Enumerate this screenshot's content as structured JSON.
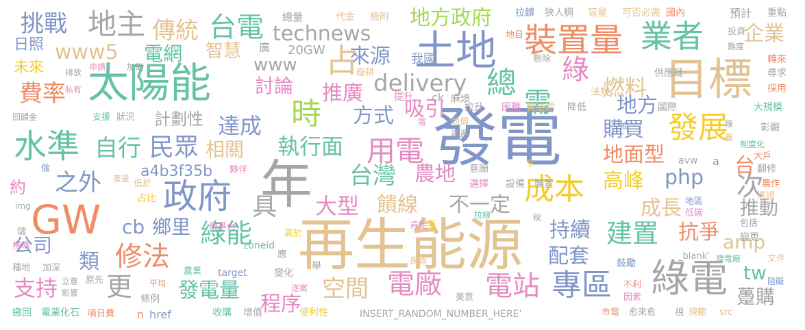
{
  "palette": [
    "#e3c392",
    "#8096c8",
    "#a6a6a6",
    "#ef8c66",
    "#e68ac2",
    "#66c2a5",
    "#a5d854",
    "#f5cc2d"
  ],
  "words": [
    "再生能源",
    "發電",
    "年",
    "太陽能",
    "目標",
    "GW",
    "土地",
    "綠電",
    "政府",
    "水準",
    "裝置量",
    "業者",
    "時",
    "專區",
    "電站",
    "電廠",
    "成本",
    "發展",
    "用電",
    "台電",
    "地主",
    "挑戰",
    "傳統",
    "technews",
    "www5",
    "地方政府",
    "來源",
    "占",
    "企業",
    "費率",
    "綠",
    "需",
    "燃料",
    "delivery",
    "總",
    "民眾",
    "自行",
    "達成",
    "之外",
    "電網",
    "智慧",
    "www",
    "討論",
    "推廣",
    "方式",
    "吸引",
    "執行面",
    "台灣",
    "購買",
    "地面型",
    "php",
    "高峰",
    "台",
    "農地",
    "大型",
    "饋線",
    "不一定",
    "成長",
    "推動",
    "次",
    "具",
    "相關",
    "計劃性",
    "a4b3f35b",
    "cb",
    "鄉里",
    "修法",
    "綠能",
    "公司",
    "類",
    "持續",
    "建置",
    "抗爭",
    "amp",
    "配套",
    "支持",
    "更",
    "發電量",
    "程序",
    "空間",
    "tw",
    "躉購",
    "地方",
    "日照",
    "未來",
    "20GW",
    "我國",
    "廣",
    "總量",
    "代金",
    "檢附",
    "拉饋",
    "狹人稠",
    "容量",
    "可否必需",
    "國內",
    "重點",
    "預計",
    "地目",
    "投資",
    "難度",
    "轉來",
    "尋求",
    "採用",
    "供應鏈",
    "法規",
    "大規模",
    "彰顯",
    "提升",
    "麻煩",
    "ck",
    "拉升",
    "困難",
    "輸送給",
    "降低",
    "國際",
    "惟",
    "線",
    "蓋",
    "制度化",
    "大戶",
    "翻修",
    "農作",
    "憑證",
    "全",
    "意願",
    "選擇",
    "設備",
    "裝置",
    "avw",
    "地區",
    "低碳",
    "包括",
    "變更",
    "建電廠",
    "文件",
    "阻礙",
    "_blank'",
    "鼓勵",
    "肯定",
    "良善",
    "市電",
    "愈來愈",
    "視",
    "規範",
    "src",
    "不利",
    "因素",
    "美意",
    "INSERT_RANDOM_NUMBER_HERE'",
    "收購",
    "增值",
    "便利性",
    "遂案",
    "條例",
    "平均",
    "變化",
    "舉",
    "應",
    "高於",
    "僅",
    "拉線",
    "稅",
    "zoneid",
    "target",
    "農業",
    "原先",
    "立意",
    "影響",
    "n",
    "href",
    "加深",
    "種地",
    "標準",
    "儲",
    "img",
    "約",
    "產量",
    "低於",
    "占比",
    "競爭力",
    "夥伴",
    "做",
    "回饋金",
    "狀況",
    "支援",
    "私有",
    "排放",
    "申請",
    "加徵",
    "廢耕",
    "刪除",
    "同價",
    "週邊",
    "電",
    "繳回",
    "電業化石",
    "噴日費",
    "a"
  ]
}
